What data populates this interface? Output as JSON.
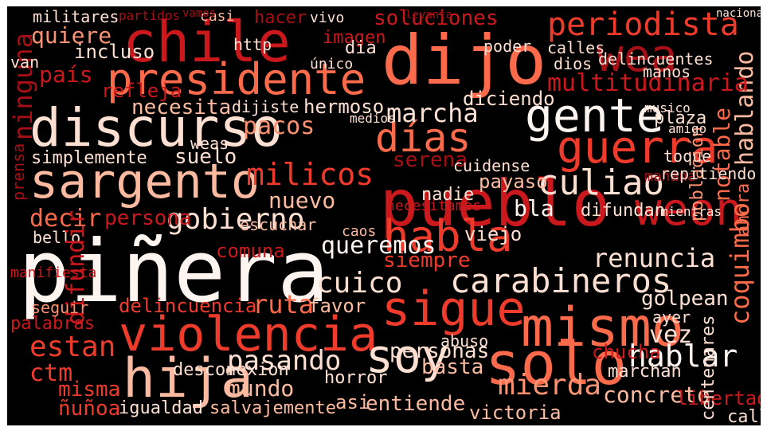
{
  "palette": {
    "background": "#000000",
    "frame": "#ffffff",
    "shades": [
      "#fff5f0",
      "#fee0d2",
      "#fcbba1",
      "#fc9272",
      "#fb6a4a",
      "#ef3b2c",
      "#cb181d",
      "#a50f15",
      "#67000d"
    ]
  },
  "words": [
    {
      "text": "piñera",
      "shade": 0
    },
    {
      "text": "dijo",
      "shade": 4
    },
    {
      "text": "chile",
      "shade": 6
    },
    {
      "text": "pueblo",
      "shade": 6
    },
    {
      "text": "discurso",
      "shade": 1
    },
    {
      "text": "presidente",
      "shade": 4
    },
    {
      "text": "violencia",
      "shade": 5
    },
    {
      "text": "sigue",
      "shade": 5
    },
    {
      "text": "mismo",
      "shade": 4
    },
    {
      "text": "solo",
      "shade": 4
    },
    {
      "text": "hija",
      "shade": 2
    },
    {
      "text": "sargento",
      "shade": 2
    },
    {
      "text": "gente",
      "shade": 0
    },
    {
      "text": "wea",
      "shade": 7
    },
    {
      "text": "weon",
      "shade": 6
    },
    {
      "text": "habla",
      "shade": 5
    },
    {
      "text": "guerra",
      "shade": 5
    },
    {
      "text": "días",
      "shade": 4
    },
    {
      "text": "carabineros",
      "shade": 1
    },
    {
      "text": "culiao",
      "shade": 1
    },
    {
      "text": "gobierno",
      "shade": 1
    },
    {
      "text": "cuico",
      "shade": 1
    },
    {
      "text": "soy",
      "shade": 1
    },
    {
      "text": "periodista",
      "shade": 5
    },
    {
      "text": "soluciones",
      "shade": 6
    },
    {
      "text": "militares",
      "shade": 1
    },
    {
      "text": "quiere",
      "shade": 3
    },
    {
      "text": "incluso",
      "shade": 1
    },
    {
      "text": "país",
      "shade": 6
    },
    {
      "text": "imagen",
      "shade": 6
    },
    {
      "text": "necesita",
      "shade": 2
    },
    {
      "text": "dijiste",
      "shade": 1
    },
    {
      "text": "hermoso",
      "shade": 1
    },
    {
      "text": "marcha",
      "shade": 1
    },
    {
      "text": "pacos",
      "shade": 3
    },
    {
      "text": "simplemente",
      "shade": 1
    },
    {
      "text": "suelo",
      "shade": 1
    },
    {
      "text": "milicos",
      "shade": 5
    },
    {
      "text": "serena",
      "shade": 7
    },
    {
      "text": "notable",
      "shade": 4
    },
    {
      "text": "hablando",
      "shade": 2
    },
    {
      "text": "multitudinaria",
      "shade": 6
    },
    {
      "text": "diciendo",
      "shade": 1
    },
    {
      "text": "coquimbo",
      "shade": 4
    },
    {
      "text": "renuncia",
      "shade": 1
    },
    {
      "text": "queremos",
      "shade": 0
    },
    {
      "text": "bla",
      "shade": 0
    },
    {
      "text": "decir",
      "shade": 4
    },
    {
      "text": "persona",
      "shade": 6
    },
    {
      "text": "comuna",
      "shade": 6
    },
    {
      "text": "nuevo",
      "shade": 2
    },
    {
      "text": "payaso",
      "shade": 2
    },
    {
      "text": "ruta",
      "shade": 4
    },
    {
      "text": "favor",
      "shade": 2
    },
    {
      "text": "delincuencia",
      "shade": 5
    },
    {
      "text": "estan",
      "shade": 5
    },
    {
      "text": "ctm",
      "shade": 5
    },
    {
      "text": "misma",
      "shade": 5
    },
    {
      "text": "ñuñoa",
      "shade": 5
    },
    {
      "text": "mundo",
      "shade": 2
    },
    {
      "text": "pasando",
      "shade": 1
    },
    {
      "text": "personas",
      "shade": 1
    },
    {
      "text": "basta",
      "shade": 2
    },
    {
      "text": "hablar",
      "shade": 0
    },
    {
      "text": "vez",
      "shade": 1
    },
    {
      "text": "mierda",
      "shade": 3
    },
    {
      "text": "concreto",
      "shade": 2
    },
    {
      "text": "entiende",
      "shade": 2
    },
    {
      "text": "victoria",
      "shade": 2
    },
    {
      "text": "libertad",
      "shade": 6
    },
    {
      "text": "igualdad",
      "shade": 1
    },
    {
      "text": "salvajemente",
      "shade": 2
    },
    {
      "text": "desconexion",
      "shade": 1
    },
    {
      "text": "horror",
      "shade": 1
    },
    {
      "text": "golpean",
      "shade": 1
    },
    {
      "text": "chucha",
      "shade": 6
    },
    {
      "text": "marchan",
      "shade": 1
    },
    {
      "text": "siempre",
      "shade": 5
    },
    {
      "text": "viejo",
      "shade": 1
    },
    {
      "text": "difundan",
      "shade": 1
    },
    {
      "text": "bello",
      "shade": 1
    },
    {
      "text": "dios",
      "shade": 1
    },
    {
      "text": "calles",
      "shade": 1
    },
    {
      "text": "delincuentes",
      "shade": 1
    },
    {
      "text": "manos",
      "shade": 1
    },
    {
      "text": "ninguna",
      "shade": 7
    },
    {
      "text": "refleja",
      "shade": 6
    },
    {
      "text": "van",
      "shade": 1
    },
    {
      "text": "nadie",
      "shade": 1
    },
    {
      "text": "weas",
      "shade": 1
    },
    {
      "text": "dia",
      "shade": 1
    },
    {
      "text": "toque",
      "shade": 1
    },
    {
      "text": "plaza",
      "shade": 1
    },
    {
      "text": "mañana",
      "shade": 7
    },
    {
      "text": "cuidense",
      "shade": 1
    },
    {
      "text": "difundir",
      "shade": 6
    },
    {
      "text": "ayer",
      "shade": 1
    },
    {
      "text": "población",
      "shade": 3
    },
    {
      "text": "centenares",
      "shade": 1
    },
    {
      "text": "calle",
      "shade": 1
    },
    {
      "text": "asi",
      "shade": 2
    },
    {
      "text": "abuso",
      "shade": 1
    },
    {
      "text": "palabras",
      "shade": 6
    },
    {
      "text": "seguir",
      "shade": 3
    },
    {
      "text": "ahora",
      "shade": 4
    },
    {
      "text": "manifiesta",
      "shade": 6
    },
    {
      "text": "prensa",
      "shade": 7
    },
    {
      "text": "repitiendo",
      "shade": 1
    },
    {
      "text": "medios",
      "shade": 1
    },
    {
      "text": "amigo",
      "shade": 1
    },
    {
      "text": "musico",
      "shade": 1
    },
    {
      "text": "vivo",
      "shade": 1
    },
    {
      "text": "hacer",
      "shade": 7
    },
    {
      "text": "partidos",
      "shade": 7
    },
    {
      "text": "casi",
      "shade": 2
    },
    {
      "text": "poder",
      "shade": 1
    },
    {
      "text": "único",
      "shade": 1
    },
    {
      "text": "http",
      "shade": 1
    },
    {
      "text": "escuchar",
      "shade": 2
    },
    {
      "text": "caos",
      "shade": 2
    },
    {
      "text": "necesitamos",
      "shade": 6
    },
    {
      "text": "mientras",
      "shade": 1
    },
    {
      "text": "vamos",
      "shade": 7
    },
    {
      "text": "levanta",
      "shade": 7
    },
    {
      "text": "nacional",
      "shade": 1
    }
  ]
}
